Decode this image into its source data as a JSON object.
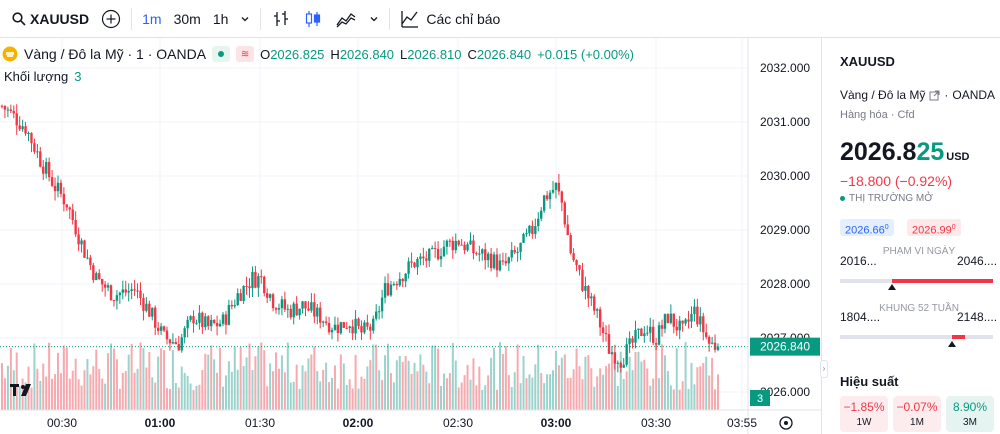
{
  "toolbar": {
    "symbol": "XAUUSD",
    "intervals": [
      "1m",
      "30m",
      "1h"
    ],
    "active_interval": "1m",
    "indicators_label": "Các chỉ báo"
  },
  "legend": {
    "title": "Vàng / Đô la Mỹ · 1 · OANDA",
    "o_label": "O",
    "o_value": "2026.825",
    "h_label": "H",
    "h_value": "2026.840",
    "l_label": "L",
    "l_value": "2026.810",
    "c_label": "C",
    "c_value": "2026.840",
    "change": "+0.015 (+0.00%)",
    "volume_label": "Khối lượng",
    "volume_value": "3"
  },
  "colors": {
    "up": "#089981",
    "down": "#f23645",
    "vol_up": "#9ad3cc",
    "vol_down": "#f6a9ae",
    "accent": "#2962ff",
    "last_price_bg": "#089981"
  },
  "chart_data": {
    "type": "candlestick",
    "y_ticks": [
      "2032.000",
      "2031.000",
      "2030.000",
      "2029.000",
      "2028.000",
      "2027.000",
      "2026.000"
    ],
    "ylim": [
      2025.9,
      2032.1
    ],
    "x_ticks": [
      "00:30",
      "01:00",
      "01:30",
      "02:00",
      "02:30",
      "03:00",
      "03:30",
      "03:55"
    ],
    "x_bold_ticks": [
      "01:00",
      "02:00",
      "03:00"
    ],
    "last_price": "2026.840",
    "last_volume": "3",
    "path": [
      [
        0,
        2031.3
      ],
      [
        4,
        2031.1
      ],
      [
        8,
        2030.9
      ],
      [
        13,
        2030.3
      ],
      [
        18,
        2029.8
      ],
      [
        22,
        2029.5
      ],
      [
        28,
        2028.6
      ],
      [
        32,
        2028.1
      ],
      [
        38,
        2027.8
      ],
      [
        45,
        2027.9
      ],
      [
        50,
        2027.5
      ],
      [
        55,
        2027.0
      ],
      [
        60,
        2026.9
      ],
      [
        65,
        2027.4
      ],
      [
        70,
        2027.2
      ],
      [
        75,
        2027.3
      ],
      [
        80,
        2027.8
      ],
      [
        85,
        2028.1
      ],
      [
        88,
        2028.1
      ],
      [
        92,
        2027.7
      ],
      [
        97,
        2027.5
      ],
      [
        102,
        2027.6
      ],
      [
        108,
        2027.4
      ],
      [
        113,
        2027.2
      ],
      [
        118,
        2027.3
      ],
      [
        122,
        2027.1
      ],
      [
        126,
        2027.2
      ],
      [
        130,
        2027.9
      ],
      [
        136,
        2028.2
      ],
      [
        140,
        2028.4
      ],
      [
        146,
        2028.5
      ],
      [
        150,
        2028.7
      ],
      [
        155,
        2028.8
      ],
      [
        160,
        2028.6
      ],
      [
        165,
        2028.5
      ],
      [
        170,
        2028.3
      ],
      [
        175,
        2028.6
      ],
      [
        180,
        2029.0
      ],
      [
        184,
        2029.6
      ],
      [
        188,
        2029.8
      ],
      [
        190,
        2029.5
      ],
      [
        193,
        2028.6
      ],
      [
        197,
        2028.0
      ],
      [
        202,
        2027.4
      ],
      [
        206,
        2026.8
      ],
      [
        210,
        2026.6
      ],
      [
        214,
        2026.9
      ],
      [
        218,
        2027.2
      ],
      [
        222,
        2027.0
      ],
      [
        226,
        2027.4
      ],
      [
        231,
        2027.1
      ],
      [
        235,
        2027.5
      ],
      [
        240,
        2026.9
      ],
      [
        243,
        2026.84
      ]
    ]
  },
  "panel": {
    "symbol": "XAUUSD",
    "description": "Vàng / Đô la Mỹ",
    "broker": "OANDA",
    "category": "Hàng hóa · Cfd",
    "price_main": "2026.8",
    "price_highlight": "25",
    "currency": "USD",
    "change": "−18.800 (−0.92%)",
    "market_status": "THỊ TRƯỜNG MỞ",
    "bid": "2026.66",
    "bid_sup": "0",
    "ask": "2026.99",
    "ask_sup": "0",
    "day_range_low": "2016...",
    "day_range_high": "2046....",
    "day_range_label": "PHẠM VI NGÀY",
    "day_range_position": 0.34,
    "week52_low": "1804....",
    "week52_high": "2148....",
    "week52_label": "KHUNG 52 TUẦN",
    "week52_position": 0.73,
    "performance_title": "Hiệu suất",
    "performance": [
      {
        "value": "−1.85%",
        "label": "1W",
        "positive": false
      },
      {
        "value": "−0.07%",
        "label": "1M",
        "positive": false
      },
      {
        "value": "8.90%",
        "label": "3M",
        "positive": true
      }
    ]
  }
}
